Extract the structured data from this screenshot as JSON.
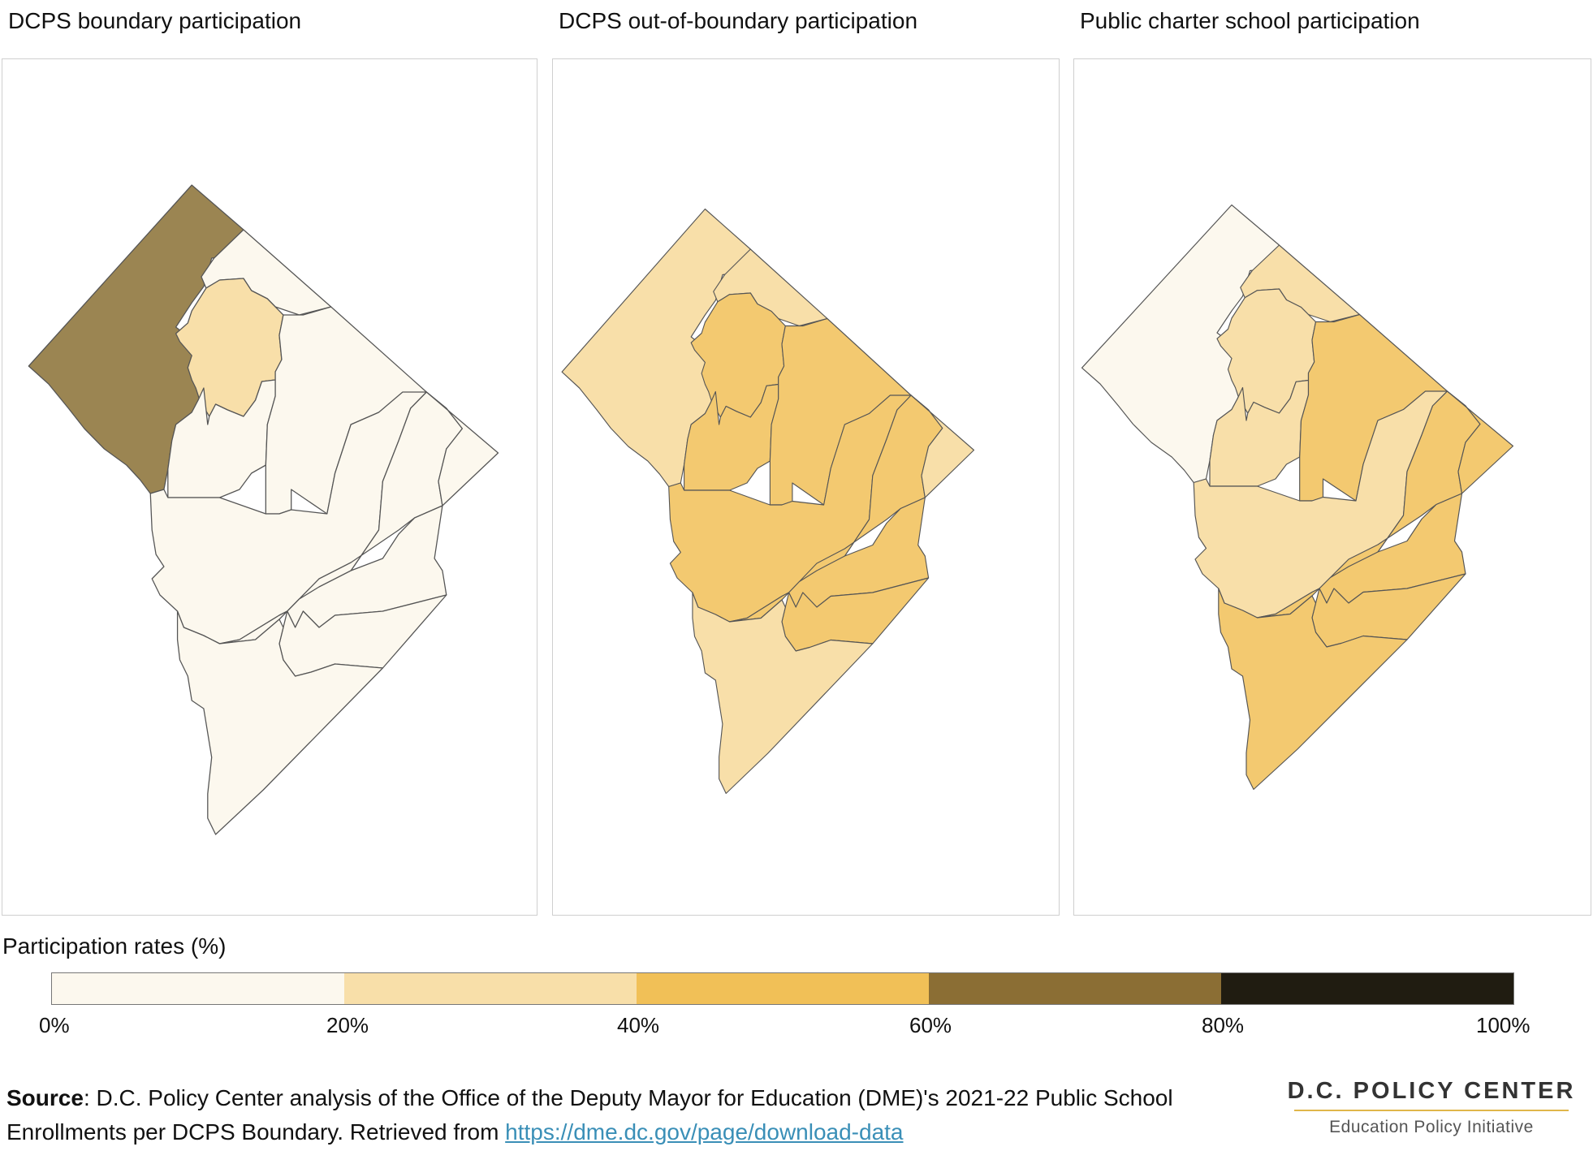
{
  "panels": [
    {
      "title": "DCPS boundary participation",
      "region_fill_levels": [
        70,
        10,
        25,
        10,
        10,
        10,
        10,
        10,
        10,
        10,
        10
      ]
    },
    {
      "title": "DCPS out-of-boundary participation",
      "region_fill_levels": [
        30,
        30,
        50,
        50,
        50,
        50,
        50,
        30,
        50,
        50,
        30
      ]
    },
    {
      "title": "Public charter school participation",
      "region_fill_levels": [
        10,
        30,
        30,
        30,
        50,
        30,
        50,
        50,
        50,
        50,
        50
      ]
    }
  ],
  "legend": {
    "title": "Participation rates (%)",
    "bins": [
      {
        "from": 0,
        "to": 20,
        "color": "#fcf8ee"
      },
      {
        "from": 20,
        "to": 40,
        "color": "#f8dfa9"
      },
      {
        "from": 40,
        "to": 60,
        "color": "#f1c057"
      },
      {
        "from": 60,
        "to": 80,
        "color": "#8b6e34"
      },
      {
        "from": 80,
        "to": 100,
        "color": "#201c11"
      }
    ],
    "ticks": [
      "0%",
      "20%",
      "40%",
      "60%",
      "80%",
      "100%"
    ]
  },
  "map_region_colors": {
    "0-20": "#fcf8ee",
    "20-40": "#f8dfa9",
    "40-60": "#f3c970",
    "60-80": "#9b8552"
  },
  "source": {
    "label": "Source",
    "text": ": D.C. Policy Center analysis of the Office of the Deputy Mayor for Education (DME)'s 2021-22 Public School Enrollments per DCPS Boundary. Retrieved from ",
    "link_text": "https://dme.dc.gov/page/download-data"
  },
  "logo": {
    "name": "D.C. POLICY CENTER",
    "subtitle": "Education Policy Initiative"
  }
}
